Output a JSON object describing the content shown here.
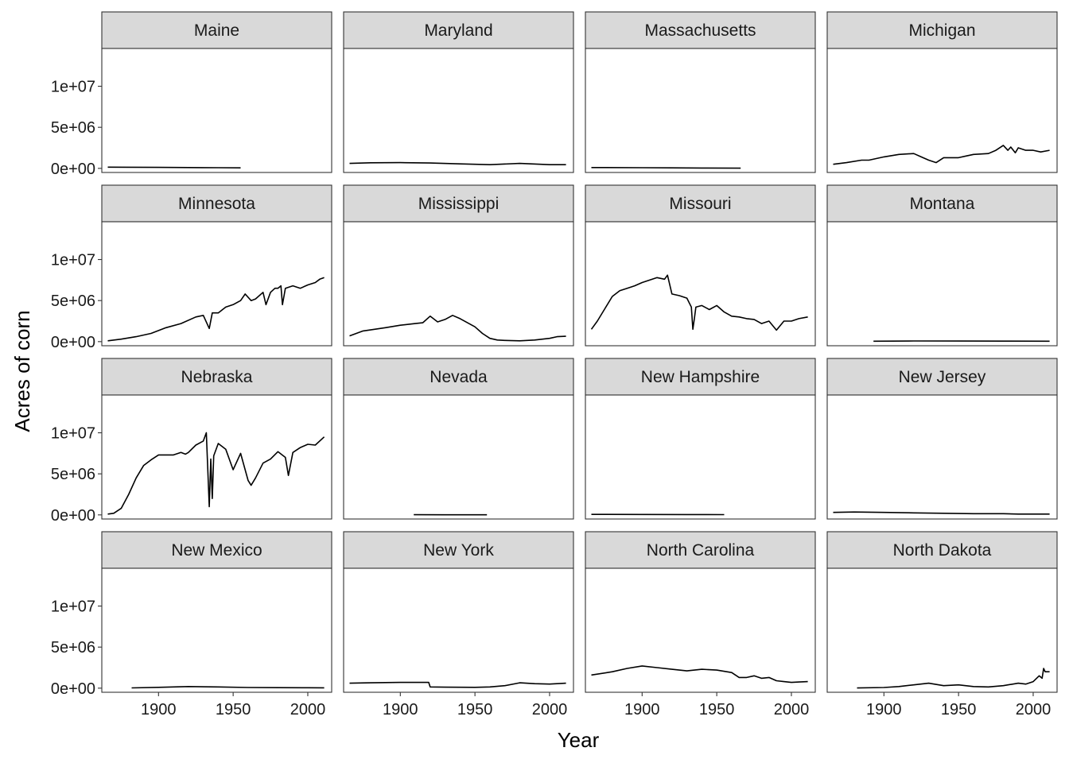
{
  "chart_data": {
    "type": "line",
    "facet_type": "wrap",
    "facet_cols": 4,
    "xlabel": "Year",
    "ylabel": "Acres of corn",
    "xlim": [
      1862,
      2016
    ],
    "ylim": [
      -500000,
      14600000
    ],
    "x_ticks": [
      1900,
      1950,
      2000
    ],
    "x_tick_labels": [
      "1900",
      "1950",
      "2000"
    ],
    "y_ticks": [
      0,
      5000000,
      10000000
    ],
    "y_tick_labels": [
      "0e+00",
      "5e+06",
      "1e+07"
    ],
    "grid": false,
    "legend": "none",
    "line_color": "#000000",
    "panel_strip_color": "#d9d9d9",
    "panels": [
      {
        "name": "Maine",
        "x": [
          1866,
          1880,
          1900,
          1920,
          1940,
          1955
        ],
        "y": [
          150000,
          140000,
          120000,
          100000,
          80000,
          60000
        ]
      },
      {
        "name": "Maryland",
        "x": [
          1866,
          1880,
          1900,
          1920,
          1940,
          1960,
          1980,
          2000,
          2011
        ],
        "y": [
          600000,
          680000,
          700000,
          650000,
          550000,
          450000,
          600000,
          450000,
          450000
        ]
      },
      {
        "name": "Massachusetts",
        "x": [
          1866,
          1900,
          1920,
          1940,
          1966
        ],
        "y": [
          100000,
          80000,
          60000,
          40000,
          20000
        ]
      },
      {
        "name": "Michigan",
        "x": [
          1866,
          1875,
          1885,
          1890,
          1900,
          1910,
          1920,
          1925,
          1930,
          1935,
          1940,
          1950,
          1955,
          1960,
          1970,
          1975,
          1980,
          1983,
          1985,
          1988,
          1990,
          1995,
          2000,
          2005,
          2011
        ],
        "y": [
          500000,
          700000,
          1000000,
          1000000,
          1400000,
          1700000,
          1800000,
          1400000,
          1000000,
          700000,
          1300000,
          1300000,
          1500000,
          1700000,
          1800000,
          2200000,
          2800000,
          2200000,
          2600000,
          1900000,
          2500000,
          2200000,
          2200000,
          2000000,
          2200000
        ]
      },
      {
        "name": "Minnesota",
        "x": [
          1866,
          1875,
          1885,
          1895,
          1905,
          1915,
          1925,
          1930,
          1934,
          1936,
          1940,
          1945,
          1950,
          1955,
          1958,
          1962,
          1965,
          1970,
          1972,
          1975,
          1978,
          1980,
          1982,
          1983,
          1985,
          1990,
          1995,
          2000,
          2005,
          2008,
          2011
        ],
        "y": [
          100000,
          300000,
          600000,
          1000000,
          1700000,
          2200000,
          3000000,
          3200000,
          1600000,
          3500000,
          3500000,
          4200000,
          4500000,
          5000000,
          5800000,
          5000000,
          5200000,
          6000000,
          4500000,
          6000000,
          6500000,
          6500000,
          6800000,
          4500000,
          6500000,
          6800000,
          6500000,
          6900000,
          7200000,
          7600000,
          7800000
        ]
      },
      {
        "name": "Mississippi",
        "x": [
          1866,
          1875,
          1890,
          1900,
          1910,
          1915,
          1920,
          1925,
          1930,
          1935,
          1940,
          1950,
          1955,
          1960,
          1965,
          1970,
          1980,
          1990,
          2000,
          2005,
          2011
        ],
        "y": [
          700000,
          1300000,
          1700000,
          2000000,
          2200000,
          2300000,
          3100000,
          2400000,
          2700000,
          3200000,
          2800000,
          1800000,
          1000000,
          400000,
          200000,
          150000,
          100000,
          200000,
          400000,
          600000,
          650000
        ]
      },
      {
        "name": "Missouri",
        "x": [
          1866,
          1870,
          1875,
          1880,
          1885,
          1890,
          1895,
          1900,
          1905,
          1910,
          1915,
          1917,
          1920,
          1925,
          1930,
          1933,
          1934,
          1935,
          1936,
          1940,
          1945,
          1950,
          1955,
          1960,
          1965,
          1970,
          1975,
          1980,
          1985,
          1990,
          1995,
          2000,
          2005,
          2011
        ],
        "y": [
          1500000,
          2500000,
          4000000,
          5500000,
          6200000,
          6500000,
          6800000,
          7200000,
          7500000,
          7800000,
          7600000,
          8100000,
          5800000,
          5600000,
          5300000,
          4200000,
          1500000,
          2800000,
          4200000,
          4400000,
          3900000,
          4400000,
          3600000,
          3100000,
          3000000,
          2800000,
          2700000,
          2200000,
          2500000,
          1400000,
          2500000,
          2500000,
          2800000,
          3000000
        ]
      },
      {
        "name": "Montana",
        "x": [
          1893,
          1920,
          1950,
          1980,
          2011
        ],
        "y": [
          50000,
          80000,
          70000,
          60000,
          50000
        ]
      },
      {
        "name": "Nebraska",
        "x": [
          1866,
          1870,
          1875,
          1880,
          1885,
          1890,
          1895,
          1900,
          1910,
          1915,
          1918,
          1920,
          1925,
          1930,
          1932,
          1934,
          1935,
          1936,
          1937,
          1940,
          1945,
          1950,
          1955,
          1960,
          1962,
          1965,
          1970,
          1975,
          1980,
          1985,
          1987,
          1990,
          1995,
          2000,
          2005,
          2011
        ],
        "y": [
          100000,
          200000,
          800000,
          2500000,
          4500000,
          6000000,
          6700000,
          7300000,
          7300000,
          7600000,
          7400000,
          7600000,
          8500000,
          9000000,
          10000000,
          1000000,
          6800000,
          2000000,
          7200000,
          8700000,
          8000000,
          5500000,
          7500000,
          4200000,
          3600000,
          4500000,
          6300000,
          6800000,
          7700000,
          7000000,
          4800000,
          7600000,
          8200000,
          8600000,
          8500000,
          9500000
        ]
      },
      {
        "name": "Nevada",
        "x": [
          1909,
          1930,
          1958
        ],
        "y": [
          20000,
          15000,
          10000
        ]
      },
      {
        "name": "New Hampshire",
        "x": [
          1866,
          1900,
          1930,
          1955
        ],
        "y": [
          60000,
          50000,
          40000,
          30000
        ]
      },
      {
        "name": "New Jersey",
        "x": [
          1866,
          1880,
          1900,
          1920,
          1940,
          1960,
          1980,
          1990,
          2000,
          2011
        ],
        "y": [
          300000,
          350000,
          300000,
          250000,
          200000,
          150000,
          150000,
          100000,
          100000,
          100000
        ]
      },
      {
        "name": "New Mexico",
        "x": [
          1882,
          1900,
          1920,
          1940,
          1960,
          1980,
          2000,
          2011
        ],
        "y": [
          30000,
          100000,
          200000,
          150000,
          80000,
          60000,
          50000,
          40000
        ]
      },
      {
        "name": "New York",
        "x": [
          1866,
          1880,
          1900,
          1919,
          1920,
          1930,
          1950,
          1960,
          1970,
          1980,
          1990,
          2000,
          2011
        ],
        "y": [
          600000,
          650000,
          700000,
          700000,
          150000,
          120000,
          100000,
          150000,
          300000,
          650000,
          550000,
          500000,
          600000
        ]
      },
      {
        "name": "North Carolina",
        "x": [
          1866,
          1880,
          1890,
          1900,
          1910,
          1920,
          1930,
          1940,
          1950,
          1960,
          1965,
          1970,
          1975,
          1980,
          1985,
          1990,
          1995,
          2000,
          2005,
          2011
        ],
        "y": [
          1600000,
          2000000,
          2400000,
          2700000,
          2500000,
          2300000,
          2100000,
          2300000,
          2200000,
          1900000,
          1300000,
          1300000,
          1500000,
          1200000,
          1300000,
          900000,
          800000,
          700000,
          750000,
          800000
        ]
      },
      {
        "name": "North Dakota",
        "x": [
          1882,
          1900,
          1910,
          1920,
          1930,
          1940,
          1950,
          1960,
          1970,
          1980,
          1990,
          1995,
          2000,
          2004,
          2006,
          2007,
          2008,
          2011
        ],
        "y": [
          20000,
          80000,
          200000,
          400000,
          600000,
          300000,
          400000,
          200000,
          150000,
          300000,
          600000,
          500000,
          800000,
          1500000,
          1200000,
          2400000,
          2000000,
          2000000
        ]
      }
    ]
  }
}
